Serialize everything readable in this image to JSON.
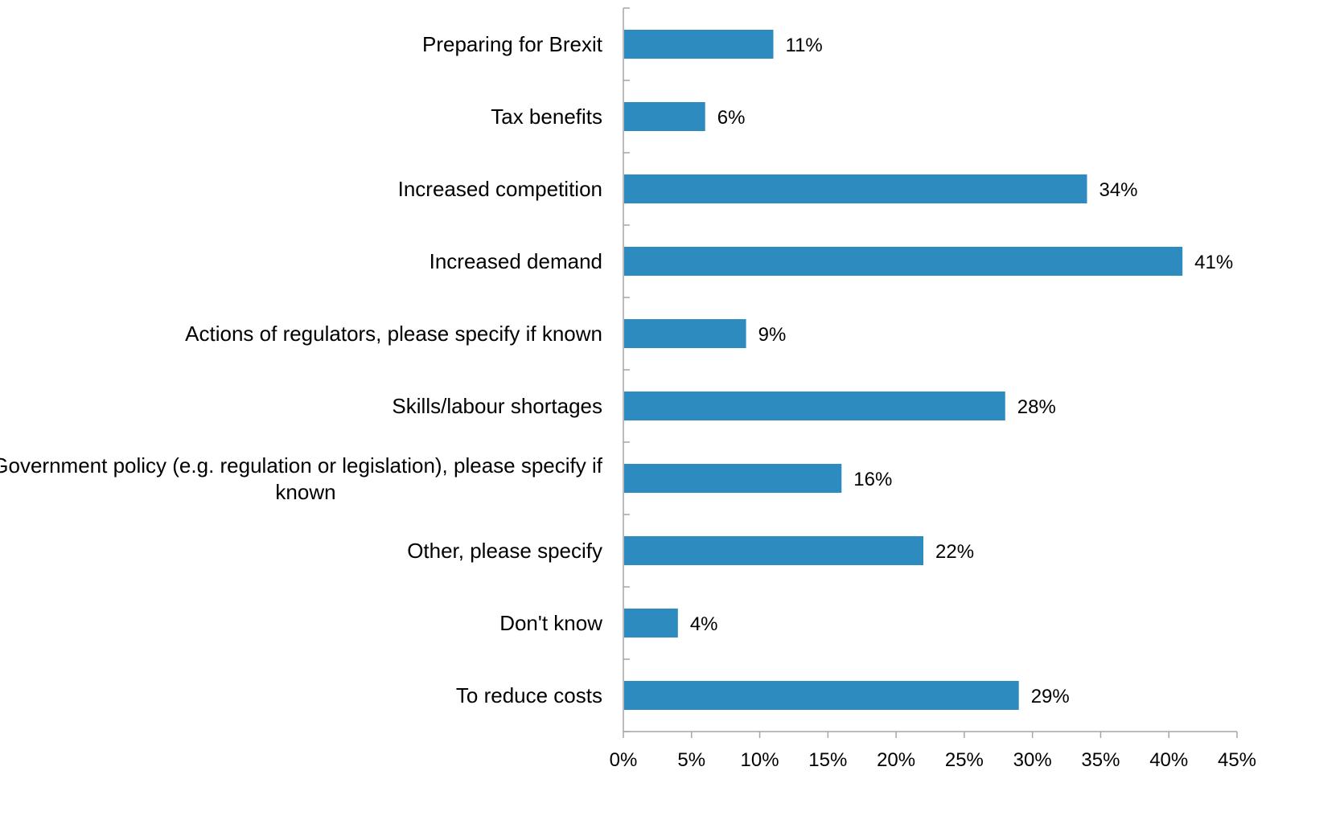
{
  "chart_data": {
    "type": "bar",
    "orientation": "horizontal",
    "categories": [
      "Preparing for Brexit",
      "Tax benefits",
      "Increased competition",
      "Increased demand",
      "Actions of regulators, please specify if known",
      "Skills/labour shortages",
      "Government policy (e.g. regulation or legislation), please specify if known",
      "Other, please specify",
      "Don't know",
      "To reduce costs"
    ],
    "category_label_lines": [
      [
        "Preparing for Brexit"
      ],
      [
        "Tax benefits"
      ],
      [
        "Increased competition"
      ],
      [
        "Increased demand"
      ],
      [
        "Actions of regulators, please specify if known"
      ],
      [
        "Skills/labour shortages"
      ],
      [
        "Government policy (e.g. regulation or legislation), please specify if",
        "known"
      ],
      [
        "Other, please specify"
      ],
      [
        "Don't know"
      ],
      [
        "To reduce costs"
      ]
    ],
    "values": [
      11,
      6,
      34,
      41,
      9,
      28,
      16,
      22,
      4,
      29
    ],
    "data_labels": [
      "11%",
      "6%",
      "34%",
      "41%",
      "9%",
      "28%",
      "16%",
      "22%",
      "4%",
      "29%"
    ],
    "x_ticks": [
      0,
      5,
      10,
      15,
      20,
      25,
      30,
      35,
      40,
      45
    ],
    "x_tick_labels": [
      "0%",
      "5%",
      "10%",
      "15%",
      "20%",
      "25%",
      "30%",
      "35%",
      "40%",
      "45%"
    ],
    "xlim": [
      0,
      45
    ],
    "title": "",
    "xlabel": "",
    "ylabel": "",
    "grid": false,
    "legend": "none",
    "bar_color": "#2e8bc0",
    "axis_color": "#a6a6a6",
    "text_color": "#000000"
  }
}
